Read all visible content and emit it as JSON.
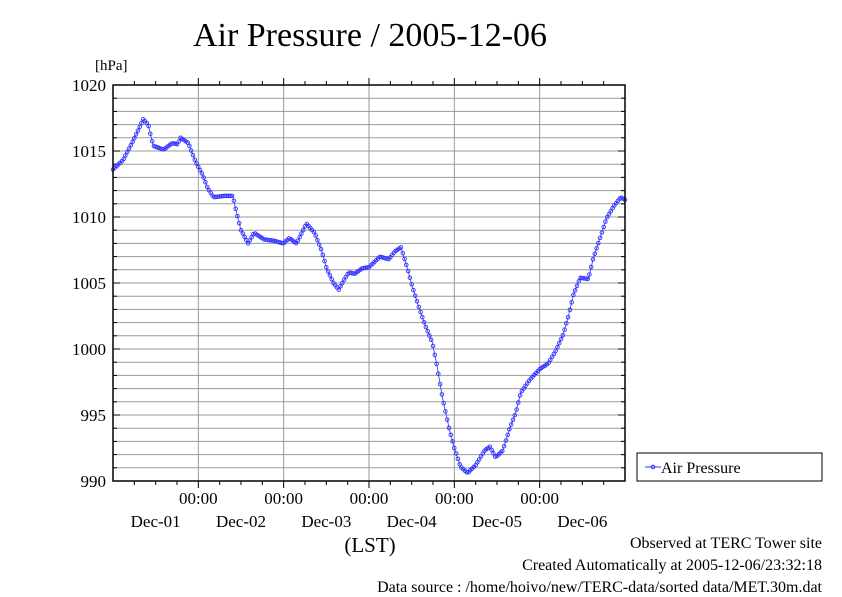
{
  "chart_data": {
    "type": "line",
    "title": "Air Pressure / 2005-12-06",
    "ylabel": "[hPa]",
    "xlabel": "(LST)",
    "ylim": [
      990,
      1020
    ],
    "yticks": [
      990,
      995,
      1000,
      1005,
      1010,
      1015,
      1020
    ],
    "xlim_hours": [
      0,
      144
    ],
    "x_unit": "hours since Dec-01 00:00",
    "xtick_time_label": "00:00",
    "xticks_hours": [
      24,
      48,
      72,
      96,
      120
    ],
    "day_labels": [
      "Dec-01",
      "Dec-02",
      "Dec-03",
      "Dec-04",
      "Dec-05",
      "Dec-06"
    ],
    "grid": true,
    "legend_position": "right",
    "series": [
      {
        "name": "Air Pressure",
        "color": "#3333ff",
        "x": [
          0,
          2.8,
          5.7,
          8.5,
          9.9,
          11.3,
          14.2,
          16.7,
          18.1,
          19.0,
          21.2,
          23.2,
          25.2,
          26.6,
          28.3,
          31.2,
          33.7,
          34.6,
          36.0,
          38.0,
          39.7,
          42.5,
          45.3,
          47.9,
          49.6,
          51.6,
          54.4,
          56.7,
          58.6,
          60.1,
          62.0,
          63.5,
          64.9,
          66.3,
          68.0,
          70.0,
          72.0,
          75.1,
          77.6,
          79.3,
          81.0,
          82.7,
          84.1,
          86.1,
          87.8,
          89.8,
          91.2,
          92.6,
          94.6,
          96.0,
          97.7,
          99.7,
          102.0,
          104.5,
          106.0,
          107.6,
          109.6,
          111.6,
          113.3,
          114.7,
          117.3,
          120.1,
          122.4,
          124.6,
          126.6,
          128.0,
          129.5,
          131.4,
          133.7,
          135.1,
          137.1,
          138.8,
          140.8,
          142.8,
          144.0
        ],
        "y": [
          1013.6,
          1014.3,
          1015.8,
          1017.4,
          1017.0,
          1015.4,
          1015.1,
          1015.6,
          1015.5,
          1016.0,
          1015.6,
          1014.2,
          1013.2,
          1012.2,
          1011.5,
          1011.6,
          1011.6,
          1010.5,
          1009.0,
          1008.0,
          1008.8,
          1008.3,
          1008.2,
          1008.0,
          1008.4,
          1008.0,
          1009.5,
          1008.8,
          1007.5,
          1006.1,
          1005.0,
          1004.5,
          1005.2,
          1005.8,
          1005.7,
          1006.1,
          1006.2,
          1007.0,
          1006.8,
          1007.4,
          1007.7,
          1006.2,
          1004.8,
          1003.1,
          1001.8,
          1000.5,
          998.6,
          996.4,
          993.9,
          992.5,
          991.1,
          990.6,
          991.2,
          992.3,
          992.6,
          991.8,
          992.3,
          994.0,
          995.2,
          996.7,
          997.7,
          998.5,
          998.9,
          999.9,
          1001.1,
          1002.4,
          1004.1,
          1005.4,
          1005.3,
          1006.9,
          1008.5,
          1009.9,
          1010.8,
          1011.5,
          1011.3
        ]
      }
    ]
  },
  "footer": {
    "observed": "Observed at TERC Tower site",
    "created": "Created Automatically at 2005-12-06/23:32:18",
    "source": "Data source : /home/hoivo/new/TERC-data/sorted  data/MET.30m.dat"
  }
}
